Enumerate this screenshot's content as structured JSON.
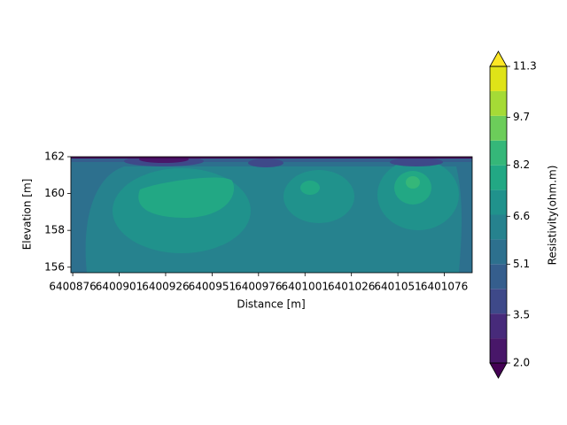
{
  "chart_data": {
    "type": "contour",
    "xlabel": "Distance [m]",
    "ylabel": "Elevation [m]",
    "xlim": [
      6400875,
      6401091
    ],
    "xticks": [
      6400876,
      6400901,
      6400926,
      6400951,
      6400976,
      6401001,
      6401026,
      6401051,
      6401076
    ],
    "ylim": [
      155.7,
      162
    ],
    "yticks": [
      156,
      158,
      160,
      162
    ],
    "colorbar": {
      "label": "Resistivity(ohm.m)",
      "levels": [
        2,
        2.775,
        3.55,
        4.325,
        5.1,
        5.875,
        6.65,
        7.425,
        8.2,
        8.975,
        9.75,
        10.525,
        11.3
      ],
      "colors": [
        "#481769",
        "#472a7a",
        "#3e4989",
        "#355e8d",
        "#2d708e",
        "#26828e",
        "#20928c",
        "#22a884",
        "#35b779",
        "#6ccd5a",
        "#a5db36",
        "#dfe318"
      ],
      "under_color": "#440154",
      "over_color": "#fde725",
      "ticks": [
        {
          "value": 2,
          "label": "2.0"
        },
        3.5,
        5.1,
        6.6,
        8.2,
        9.7,
        11.3
      ]
    }
  }
}
